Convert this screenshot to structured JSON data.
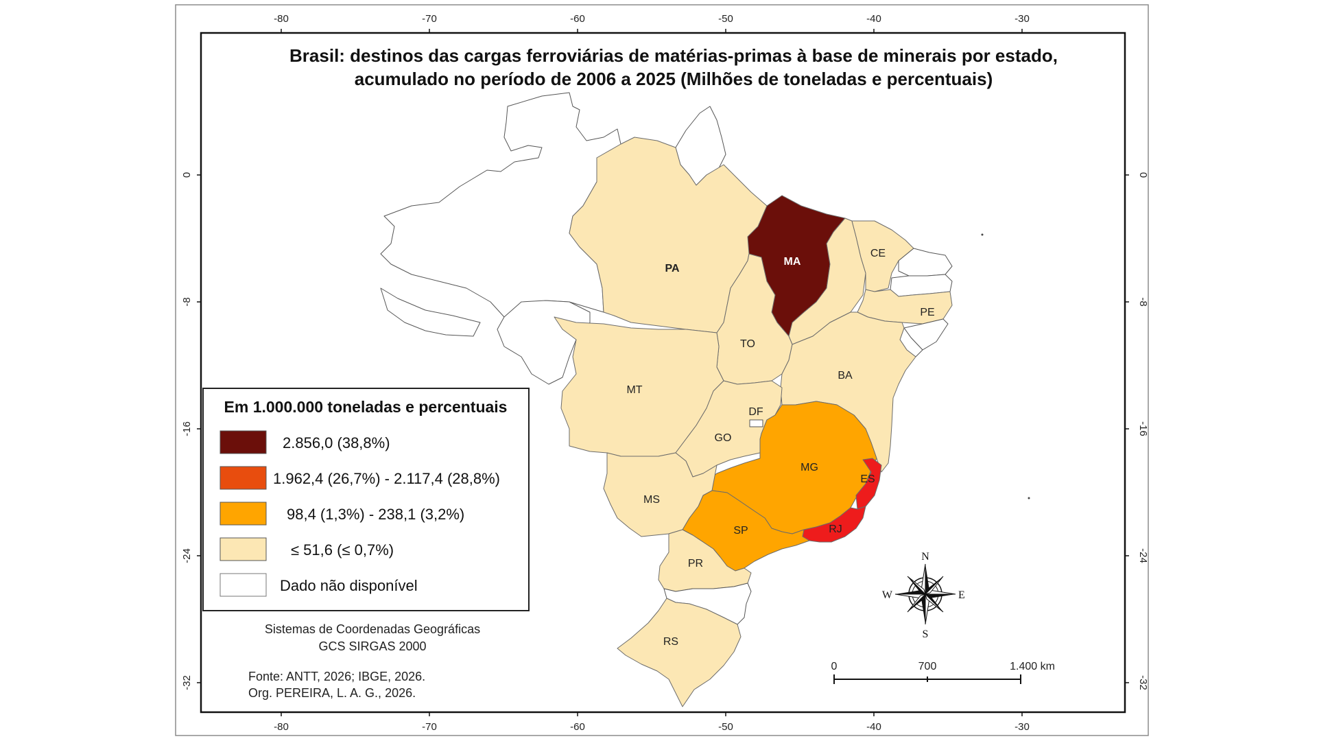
{
  "map": {
    "title_line1": "Brasil: destinos das cargas ferroviárias de matérias-primas à base de minerais por estado,",
    "title_line2": "acumulado no período de 2006 a 2025 (Milhões de toneladas e percentuais)",
    "graticule": {
      "longitude_labels": [
        "-80",
        "-70",
        "-60",
        "-50",
        "-40",
        "-30"
      ],
      "latitude_labels": [
        "0",
        "-8",
        "-16",
        "-24",
        "-32"
      ]
    },
    "classes": {
      "c1": "#6b0f0a",
      "c2": "#e84d0e",
      "c2_map": "#ee1c1c",
      "c3": "#ffa500",
      "c4": "#fce7b4",
      "nd": "#ffffff"
    },
    "state_labels": {
      "PA": "PA",
      "MA": "MA",
      "CE": "CE",
      "PE": "PE",
      "TO": "TO",
      "BA": "BA",
      "MT": "MT",
      "DF": "DF",
      "GO": "GO",
      "MG": "MG",
      "ES": "ES",
      "MS": "MS",
      "SP": "SP",
      "RJ": "RJ",
      "PR": "PR",
      "RS": "RS"
    }
  },
  "legend": {
    "title": "Em 1.000.000 toneladas e percentuais",
    "items": [
      {
        "label": "2.856,0 (38,8%)",
        "color": "#6b0f0a"
      },
      {
        "label": "1.962,4 (26,7%) - 2.117,4 (28,8%)",
        "color": "#e84d0e"
      },
      {
        "label": "98,4 (1,3%) - 238,1 (3,2%)",
        "color": "#ffa500"
      },
      {
        "label": "≤ 51,6 (≤ 0,7%)",
        "color": "#fce7b4"
      },
      {
        "label": "Dado não disponível",
        "color": "#ffffff"
      }
    ]
  },
  "coordinate_system": {
    "line1": "Sistemas de Coordenadas Geográficas",
    "line2": "GCS SIRGAS 2000"
  },
  "credits": {
    "source": "Fonte: ANTT, 2026; IBGE, 2026.",
    "org": "Org. PEREIRA, L. A. G., 2026."
  },
  "scale_bar": {
    "labels": [
      "0",
      "700",
      "1.400 km"
    ]
  },
  "compass": {
    "n": "N",
    "s": "S",
    "e": "E",
    "w": "W"
  }
}
